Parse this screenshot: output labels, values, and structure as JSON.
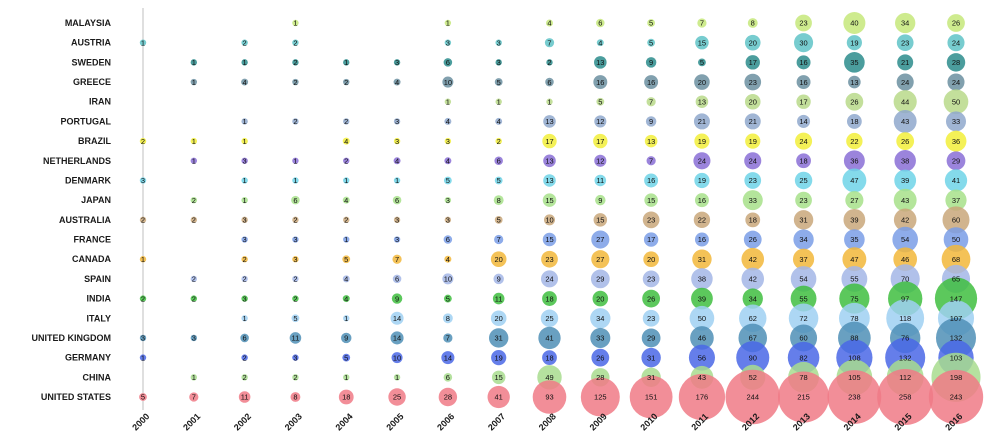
{
  "chart_data": {
    "type": "scatter",
    "subtype": "bubble-grid",
    "title": "",
    "xlabel": "",
    "ylabel": "",
    "x": [
      "2000",
      "2001",
      "2002",
      "2003",
      "2004",
      "2005",
      "2006",
      "2007",
      "2008",
      "2009",
      "2010",
      "2011",
      "2012",
      "2013",
      "2014",
      "2015",
      "2016"
    ],
    "grid": "vertical line at first year only",
    "legend": "none",
    "series": [
      {
        "name": "MALAYSIA",
        "color": "#c6e77a",
        "values": [
          null,
          null,
          null,
          1,
          null,
          null,
          1,
          null,
          4,
          6,
          5,
          7,
          8,
          23,
          40,
          34,
          26
        ]
      },
      {
        "name": "AUSTRIA",
        "color": "#5fc3c7",
        "values": [
          1,
          null,
          2,
          2,
          null,
          null,
          3,
          3,
          7,
          4,
          5,
          15,
          20,
          30,
          19,
          23,
          24
        ]
      },
      {
        "name": "SWEDEN",
        "color": "#2b8c8c",
        "values": [
          null,
          1,
          1,
          2,
          1,
          3,
          6,
          3,
          2,
          13,
          9,
          5,
          17,
          16,
          35,
          21,
          28
        ]
      },
      {
        "name": "GREECE",
        "color": "#6b8fa0",
        "values": [
          null,
          1,
          4,
          2,
          2,
          4,
          10,
          5,
          6,
          16,
          16,
          20,
          23,
          16,
          13,
          24,
          24
        ]
      },
      {
        "name": "IRAN",
        "color": "#b9d98a",
        "values": [
          null,
          null,
          null,
          null,
          null,
          null,
          1,
          1,
          1,
          5,
          7,
          13,
          20,
          17,
          26,
          44,
          50
        ]
      },
      {
        "name": "PORTUGAL",
        "color": "#8fa8cc",
        "values": [
          null,
          null,
          1,
          2,
          2,
          3,
          4,
          4,
          13,
          12,
          9,
          21,
          21,
          14,
          18,
          43,
          33
        ]
      },
      {
        "name": "BRAZIL",
        "color": "#f2ef3a",
        "values": [
          2,
          1,
          1,
          null,
          4,
          3,
          3,
          2,
          17,
          17,
          13,
          19,
          19,
          24,
          22,
          26,
          36
        ]
      },
      {
        "name": "NETHERLANDS",
        "color": "#8a6fd6",
        "values": [
          null,
          1,
          3,
          1,
          2,
          4,
          4,
          6,
          13,
          12,
          7,
          24,
          24,
          18,
          36,
          38,
          29
        ]
      },
      {
        "name": "DENMARK",
        "color": "#6fd4e8",
        "values": [
          3,
          null,
          1,
          1,
          1,
          1,
          5,
          5,
          13,
          11,
          16,
          19,
          23,
          25,
          47,
          39,
          41
        ]
      },
      {
        "name": "JAPAN",
        "color": "#a7e08a",
        "values": [
          null,
          2,
          1,
          6,
          4,
          6,
          3,
          8,
          15,
          9,
          15,
          16,
          33,
          23,
          27,
          43,
          37
        ]
      },
      {
        "name": "AUSTRALIA",
        "color": "#c9a77a",
        "values": [
          2,
          2,
          3,
          2,
          2,
          3,
          3,
          5,
          10,
          15,
          23,
          22,
          18,
          31,
          39,
          42,
          60
        ]
      },
      {
        "name": "FRANCE",
        "color": "#7a9ee6",
        "values": [
          null,
          null,
          3,
          3,
          1,
          3,
          6,
          7,
          15,
          27,
          17,
          16,
          26,
          34,
          35,
          54,
          50
        ]
      },
      {
        "name": "CANADA",
        "color": "#f2b73a",
        "values": [
          1,
          null,
          2,
          3,
          5,
          7,
          4,
          20,
          23,
          27,
          20,
          31,
          42,
          37,
          47,
          46,
          68
        ]
      },
      {
        "name": "SPAIN",
        "color": "#a3b6e6",
        "values": [
          null,
          2,
          2,
          2,
          4,
          6,
          10,
          9,
          24,
          29,
          23,
          38,
          42,
          54,
          55,
          70,
          65
        ]
      },
      {
        "name": "INDIA",
        "color": "#3fbe3f",
        "values": [
          2,
          2,
          3,
          2,
          4,
          9,
          5,
          11,
          18,
          20,
          26,
          39,
          34,
          55,
          75,
          97,
          147
        ]
      },
      {
        "name": "ITALY",
        "color": "#9fd0f2",
        "values": [
          null,
          null,
          1,
          5,
          1,
          14,
          8,
          20,
          25,
          34,
          23,
          50,
          62,
          72,
          78,
          118,
          107
        ]
      },
      {
        "name": "UNITED KINGDOM",
        "color": "#4f8fb6",
        "values": [
          3,
          3,
          6,
          11,
          9,
          14,
          7,
          31,
          41,
          33,
          29,
          46,
          67,
          60,
          88,
          76,
          132
        ]
      },
      {
        "name": "GERMANY",
        "color": "#4a67e6",
        "values": [
          1,
          null,
          2,
          3,
          5,
          10,
          14,
          19,
          18,
          26,
          31,
          56,
          90,
          82,
          108,
          132,
          103
        ]
      },
      {
        "name": "CHINA",
        "color": "#a8dc8e",
        "values": [
          null,
          1,
          2,
          2,
          1,
          1,
          6,
          15,
          49,
          28,
          31,
          43,
          52,
          78,
          105,
          112,
          198
        ]
      },
      {
        "name": "UNITED STATES",
        "color": "#f07a86",
        "values": [
          5,
          7,
          11,
          8,
          18,
          25,
          28,
          41,
          93,
          125,
          151,
          176,
          244,
          215,
          238,
          258,
          243
        ]
      }
    ]
  }
}
